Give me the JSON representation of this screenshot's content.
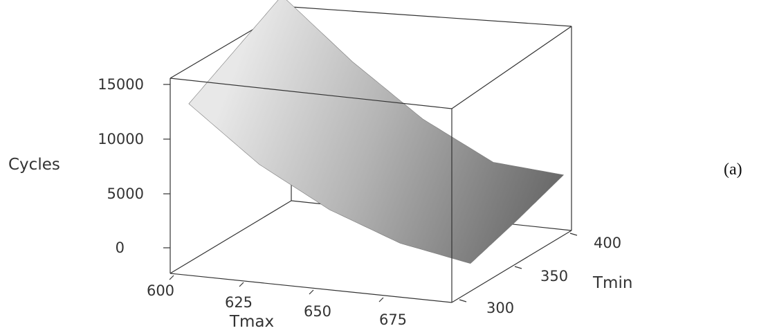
{
  "chart_data": {
    "type": "surface",
    "zlabel": "Cycles",
    "xlabel": "Tmax",
    "ylabel": "Tmin",
    "x_ticks": [
      "600",
      "625",
      "650",
      "675"
    ],
    "y_ticks": [
      "300",
      "350",
      "400"
    ],
    "z_ticks": [
      "0",
      "5000",
      "10000",
      "15000"
    ],
    "xlim": [
      600,
      700
    ],
    "ylim": [
      280,
      410
    ],
    "zlim": [
      0,
      15000
    ],
    "x_grid": [
      600,
      625,
      650,
      675,
      700
    ],
    "y_grid": [
      300,
      350,
      400
    ],
    "z_values": [
      [
        12200,
        7300,
        3800,
        1400,
        200
      ],
      [
        14600,
        9500,
        5400,
        2500,
        1600
      ],
      [
        17000,
        11600,
        7000,
        3700,
        3200
      ]
    ],
    "surface_color": "#9a9a9a",
    "panel_label": "(a)"
  }
}
